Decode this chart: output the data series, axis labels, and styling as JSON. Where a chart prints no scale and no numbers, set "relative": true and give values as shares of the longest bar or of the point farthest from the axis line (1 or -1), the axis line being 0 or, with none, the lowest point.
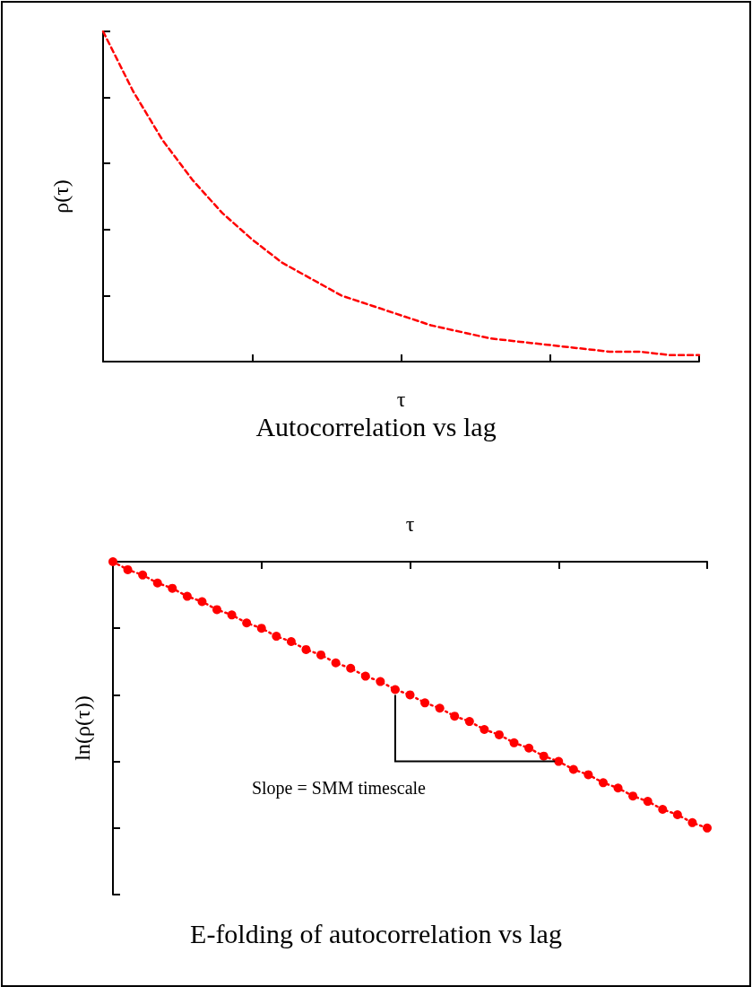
{
  "chart_data": [
    {
      "type": "line",
      "relative": true,
      "title": "Autocorrelation vs lag",
      "xlabel": "τ",
      "ylabel": "ρ(τ)",
      "categories": [
        null,
        null,
        null,
        null,
        null,
        null,
        null,
        null,
        null,
        null,
        null,
        null,
        null,
        null,
        null,
        null,
        null,
        null,
        null,
        null,
        null
      ],
      "series": [
        {
          "color": "#ff0000",
          "line_style": "dashed",
          "marker": "none",
          "values": [
            1,
            0.82,
            0.67,
            0.55,
            0.45,
            0.37,
            0.3,
            0.25,
            0.2,
            0.17,
            0.14,
            0.11,
            0.09,
            0.07,
            0.06,
            0.05,
            0.04,
            0.03,
            0.03,
            0.02,
            0.02
          ]
        }
      ]
    },
    {
      "type": "line",
      "relative": true,
      "title": "E-folding of autocorrelation vs lag",
      "xlabel": "τ",
      "ylabel": "ln(ρ(τ))",
      "annotations": [
        "Slope = SMM timescale"
      ],
      "categories": [
        null,
        null,
        null,
        null,
        null,
        null,
        null,
        null,
        null,
        null,
        null,
        null,
        null,
        null,
        null,
        null,
        null,
        null,
        null,
        null,
        null,
        null,
        null,
        null,
        null,
        null,
        null,
        null,
        null,
        null,
        null,
        null,
        null,
        null,
        null,
        null,
        null,
        null,
        null,
        null,
        null
      ],
      "series": [
        {
          "color": "#ff0000",
          "line_style": "dotted",
          "marker": "circle",
          "values": [
            0,
            -0.03,
            -0.05,
            -0.08,
            -0.1,
            -0.13,
            -0.15,
            -0.18,
            -0.2,
            -0.23,
            -0.25,
            -0.28,
            -0.3,
            -0.33,
            -0.35,
            -0.38,
            -0.4,
            -0.43,
            -0.45,
            -0.48,
            -0.5,
            -0.53,
            -0.55,
            -0.58,
            -0.6,
            -0.63,
            -0.65,
            -0.68,
            -0.7,
            -0.73,
            -0.75,
            -0.78,
            -0.8,
            -0.83,
            -0.85,
            -0.88,
            -0.9,
            -0.93,
            -0.95,
            -0.98,
            -1
          ]
        }
      ]
    }
  ]
}
